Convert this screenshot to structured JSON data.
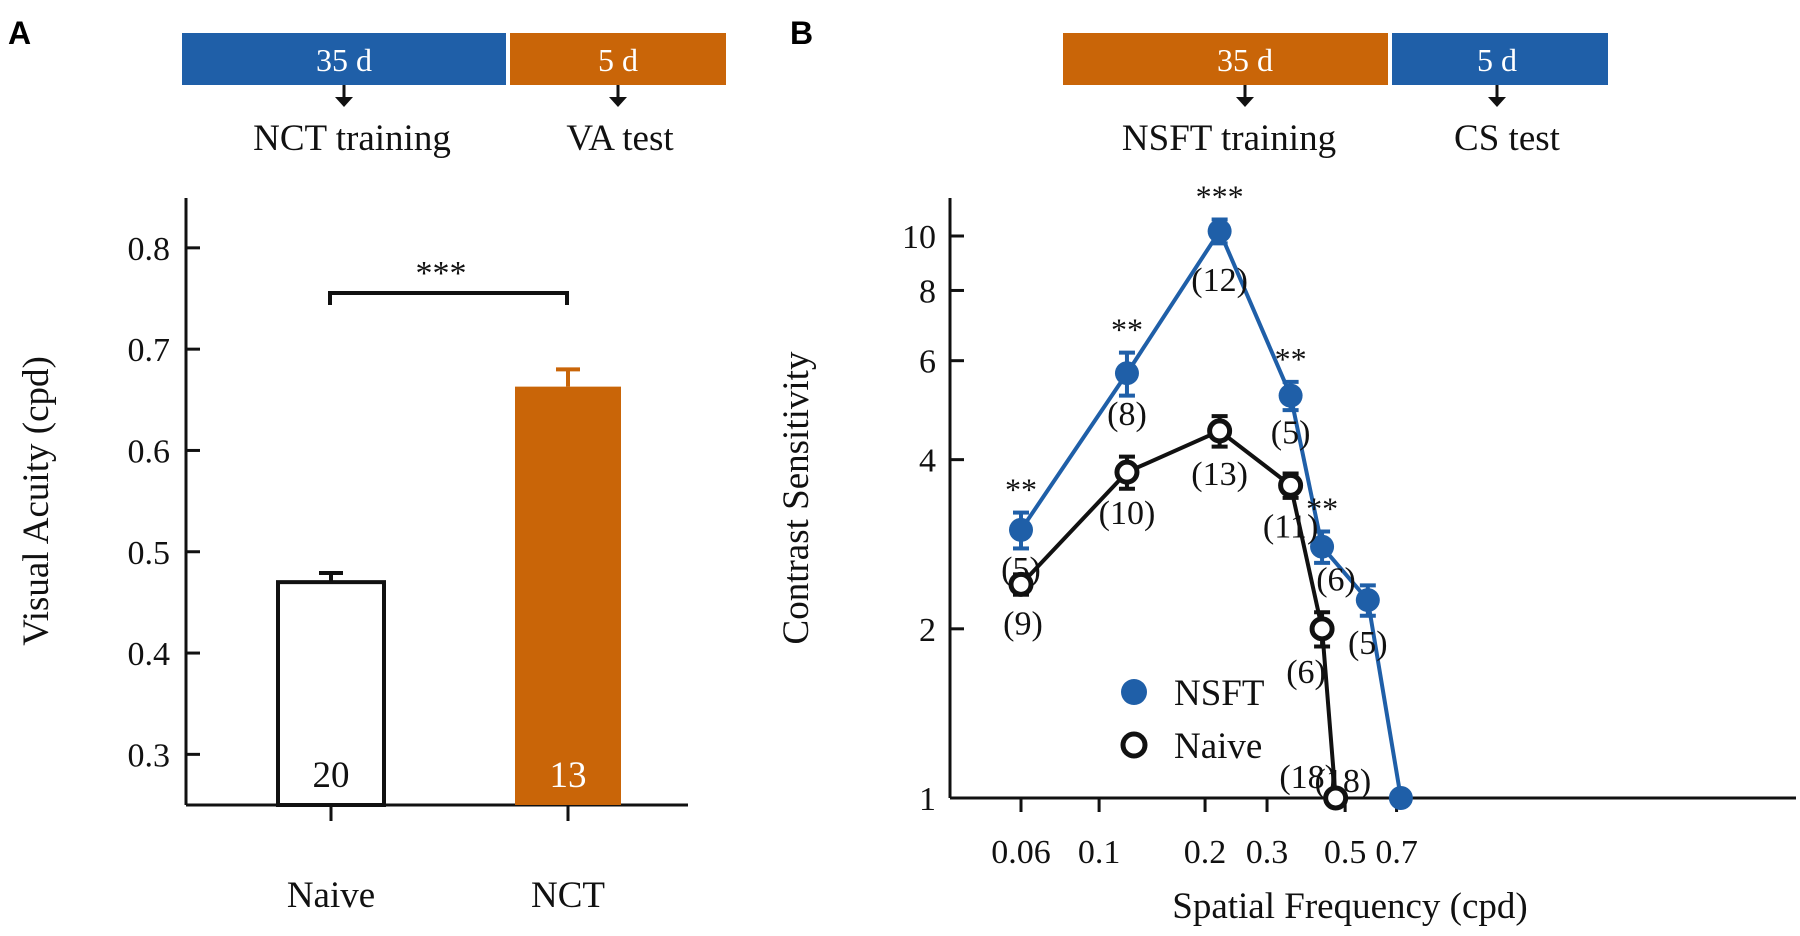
{
  "colors": {
    "blue": "#1f5fa8",
    "orange": "#c96508",
    "black": "#111111",
    "white": "#ffffff"
  },
  "panel_a": {
    "letter": "A",
    "timeline": {
      "seg1_label": "35 d",
      "seg2_label": "5 d",
      "step1": "NCT training",
      "step2": "VA test"
    }
  },
  "panel_b": {
    "letter": "B",
    "timeline": {
      "seg1_label": "35 d",
      "seg2_label": "5 d",
      "step1": "NSFT training",
      "step2": "CS test"
    },
    "legend": {
      "nsft": "NSFT",
      "naive": "Naive"
    }
  },
  "chart_data": [
    {
      "type": "bar",
      "panel": "A",
      "title": "",
      "xlabel": "",
      "ylabel": "Visual Acuity (cpd)",
      "ylim": [
        0.25,
        0.85
      ],
      "yticks": [
        "0.3",
        "0.4",
        "0.5",
        "0.6",
        "0.7",
        "0.8"
      ],
      "categories": [
        "Naive",
        "NCT"
      ],
      "values": [
        0.47,
        0.663
      ],
      "errors": [
        0.009,
        0.017
      ],
      "n": [
        "20",
        "13"
      ],
      "bar_colors": [
        "#ffffff",
        "#c96508"
      ],
      "significance": "***"
    },
    {
      "type": "line",
      "panel": "B",
      "xlabel": "Spatial Frequency (cpd)",
      "ylabel": "Contrast Sensitivity",
      "xscale": "log",
      "yscale": "log",
      "xticks": [
        {
          "value": 0.06,
          "label": "0.06"
        },
        {
          "value": 0.1,
          "label": "0.1"
        },
        {
          "value": 0.2,
          "label": "0.2"
        },
        {
          "value": 0.3,
          "label": "0.3"
        },
        {
          "value": 0.5,
          "label": "0.5"
        },
        {
          "value": 0.7,
          "label": "0.7"
        }
      ],
      "yticks": [
        {
          "value": 1,
          "label": "1"
        },
        {
          "value": 2,
          "label": "2"
        },
        {
          "value": 4,
          "label": "4"
        },
        {
          "value": 6,
          "label": "6"
        },
        {
          "value": 8,
          "label": "8"
        },
        {
          "value": 10,
          "label": "10"
        }
      ],
      "legend_position": "bottom-left",
      "series": [
        {
          "name": "NSFT",
          "color": "#1f5fa8",
          "marker": "filled-circle",
          "points": [
            {
              "x": 0.06,
              "y": 3.0,
              "err": 0.22,
              "n": "(5)",
              "sig": "**"
            },
            {
              "x": 0.12,
              "y": 5.7,
              "err": 0.5,
              "n": "(8)",
              "sig": "**"
            },
            {
              "x": 0.22,
              "y": 10.2,
              "err": 0.5,
              "n": "(12)",
              "sig": "***"
            },
            {
              "x": 0.35,
              "y": 5.2,
              "err": 0.3,
              "n": "(5)",
              "sig": "**"
            },
            {
              "x": 0.43,
              "y": 2.8,
              "err": 0.18,
              "n": "(6)",
              "sig": "**"
            },
            {
              "x": 0.58,
              "y": 2.25,
              "err": 0.14,
              "n": "(5)",
              "sig": ""
            },
            {
              "x": 0.72,
              "y": 1.0,
              "err": 0,
              "n": "(18)",
              "sig": ""
            }
          ]
        },
        {
          "name": "Naive",
          "color": "#111111",
          "marker": "open-circle",
          "points": [
            {
              "x": 0.06,
              "y": 2.4,
              "err": 0.1,
              "n": "(9)"
            },
            {
              "x": 0.12,
              "y": 3.8,
              "err": 0.25,
              "n": "(10)"
            },
            {
              "x": 0.22,
              "y": 4.5,
              "err": 0.28,
              "n": "(13)"
            },
            {
              "x": 0.35,
              "y": 3.6,
              "err": 0.18,
              "n": "(11)"
            },
            {
              "x": 0.43,
              "y": 2.0,
              "err": 0.14,
              "n": "(6)"
            },
            {
              "x": 0.47,
              "y": 1.0,
              "err": 0,
              "n": "(18)"
            }
          ]
        }
      ]
    }
  ]
}
